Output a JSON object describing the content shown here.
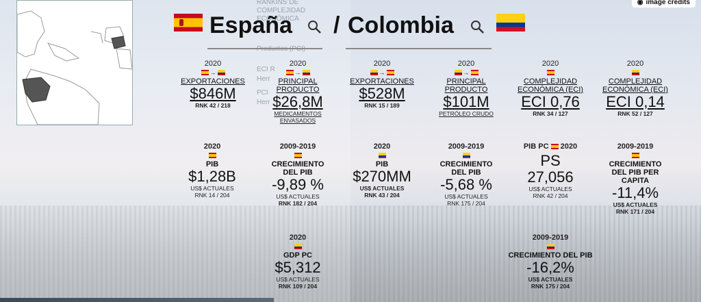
{
  "credits_label": "image credits",
  "ghost_menu": [
    "RANKINS DE",
    "COMPLEJIDAD",
    "ECONÓMICA",
    "Productos (PCI)",
    "ECI R",
    "Herr",
    "PCI",
    "Herr"
  ],
  "header": {
    "left_country": "España",
    "separator": "/",
    "right_country": "Colombia"
  },
  "colors": {
    "es_red": "#c60b1e",
    "es_yellow": "#ffc400",
    "co_yellow": "#fcd116",
    "co_blue": "#003893",
    "co_red": "#ce1126"
  },
  "stats": {
    "s1": {
      "year": "2020",
      "label": "EXPORTACIONES",
      "value": "$846M",
      "rank": "RNK 42 / 218"
    },
    "s2": {
      "year": "2020",
      "label1": "PRINCIPAL",
      "label2": "PRODUCTO",
      "value": "$26,8M",
      "sub1": "MEDICAMENTOS",
      "sub2": "ENVASADOS"
    },
    "s3": {
      "year": "2020",
      "label": "EXPORTACIONES",
      "value": "$528M",
      "rank": "RNK 15 / 189"
    },
    "s4": {
      "year": "2020",
      "label1": "PRINCIPAL",
      "label2": "PRODUCTO",
      "value": "$101M",
      "sub1": "PETRÓLEO CRUDO"
    },
    "s5": {
      "year": "2020",
      "label1": "COMPLEJIDAD",
      "label2": "ECONÓMICA (ECI)",
      "value": "ECI 0,76",
      "rank": "RNK 34 / 127"
    },
    "s6": {
      "year": "2020",
      "label1": "COMPLEJIDAD",
      "label2": "ECONÓMICA (ECI)",
      "value": "ECI 0,14",
      "rank": "RNK 52 / 127"
    },
    "s7": {
      "year": "2020",
      "label": "PIB",
      "value": "$1,28B",
      "sub1": "US$ ACTUALES",
      "rank": "RNK 14 / 204"
    },
    "s8": {
      "year": "2009-2019",
      "label1": "CRECIMIENTO",
      "label2": "DEL PIB",
      "value": "-9,89 %",
      "sub1": "US$ ACTUALES",
      "rank": "RNK 182 / 204"
    },
    "s9": {
      "year": "2020",
      "label": "PIB",
      "value": "$270MM",
      "sub1": "US$ ACTUALES",
      "rank": "RNK 43 / 204"
    },
    "s10": {
      "year": "2009-2019",
      "label1": "CRECIMIENTO",
      "label2": "DEL PIB",
      "value": "-5,68 %",
      "sub1": "US$ ACTUALES",
      "rank": "RNK 175 / 204"
    },
    "s11": {
      "year_a": "PIB PC",
      "year_b": "2020",
      "value1": "PS",
      "value2": "27,056",
      "sub1": "US$ ACTUALES",
      "rank": "RNK 42 / 204"
    },
    "s12": {
      "year": "2009-2019",
      "label1": "CRECIMIENTO",
      "label2": "DEL PIB PER",
      "label3": "CAPITA",
      "value": "-11,4%",
      "sub1": "US$ ACTUALES",
      "rank": "RNK 171 / 204"
    },
    "s13": {
      "year": "2020",
      "label": "GDP PC",
      "value": "$5,312",
      "sub1": "US$ ACTUALES",
      "rank": "RNK 109 / 204"
    },
    "s14": {
      "year": "2009-2019",
      "label": "CRECIMIENTO DEL PIB",
      "value": "-16,2%",
      "sub1": "US$ ACTUALES",
      "rank": "RNK 175 / 204"
    }
  }
}
